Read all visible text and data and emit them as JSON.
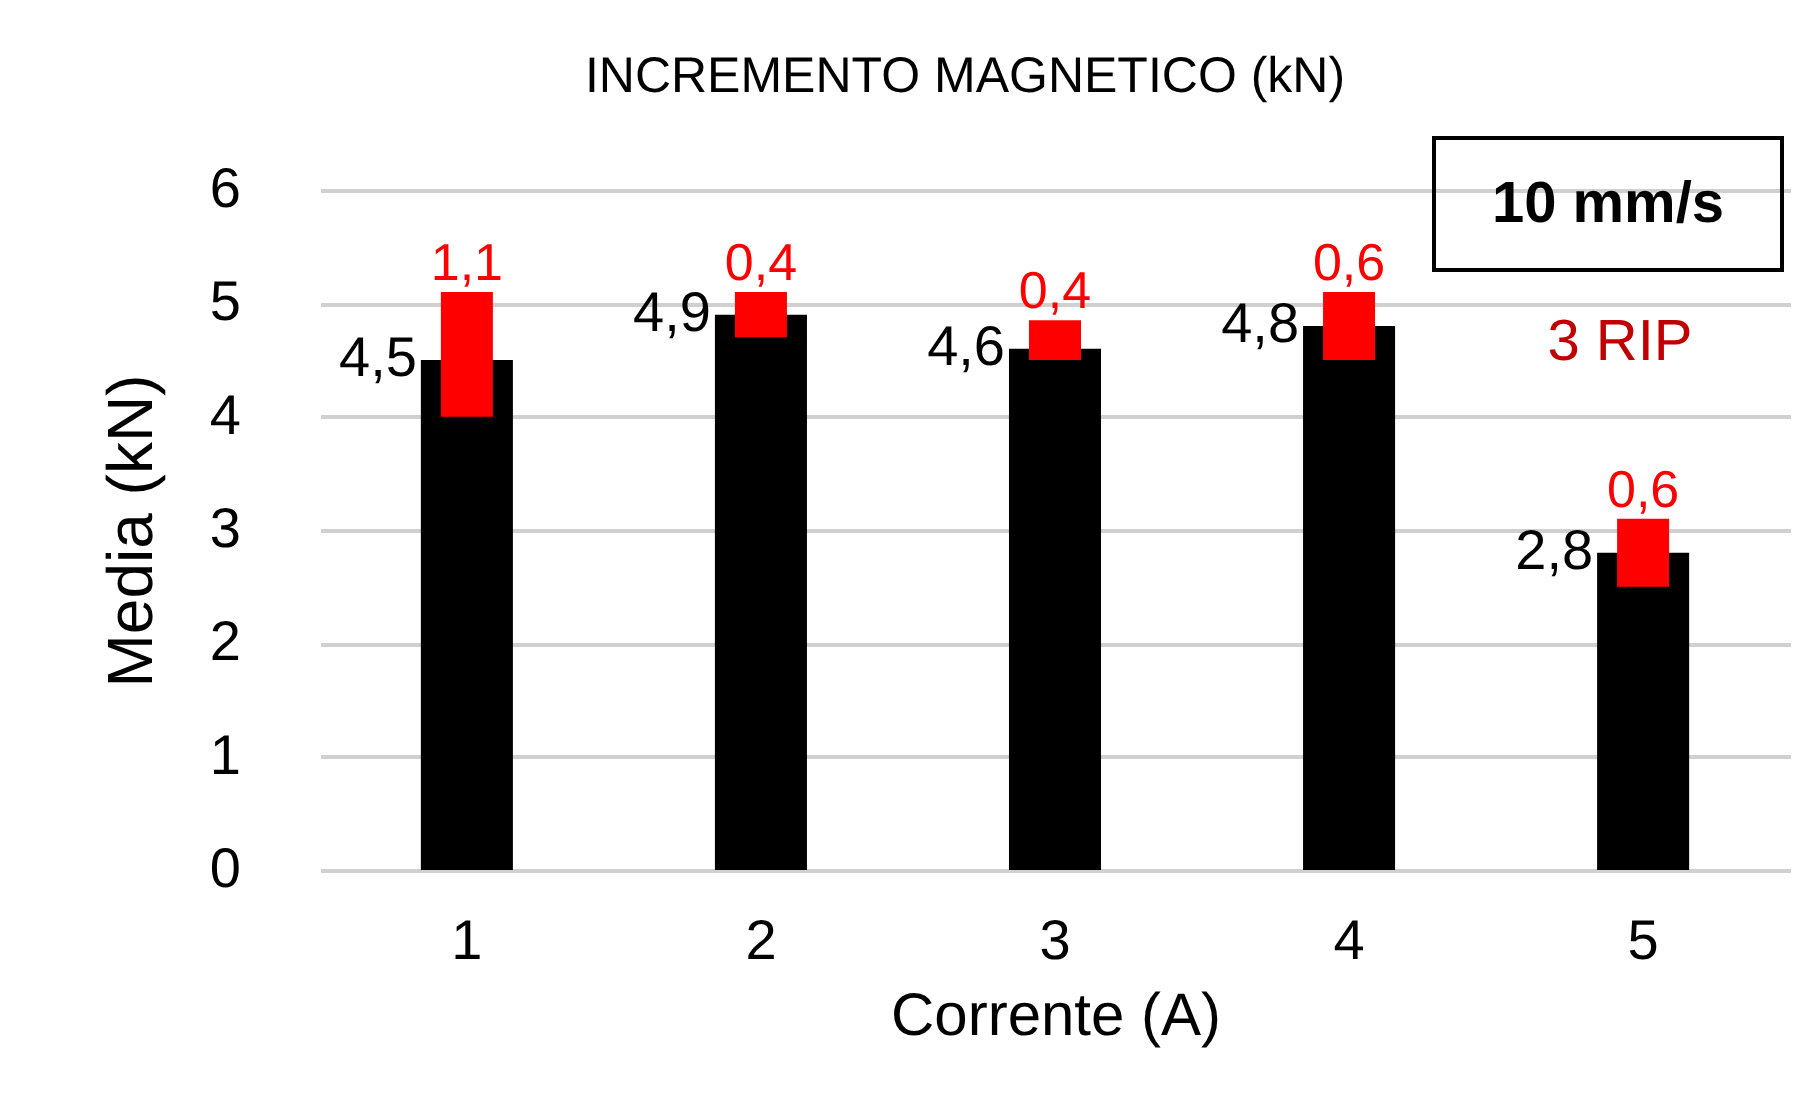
{
  "chart_data": {
    "type": "bar",
    "title": "INCREMENTO MAGNETICO (kN)",
    "xlabel": "Corrente (A)",
    "ylabel": "Media (kN)",
    "categories": [
      "1",
      "2",
      "3",
      "4",
      "5"
    ],
    "values": [
      4.5,
      4.9,
      4.6,
      4.8,
      2.8
    ],
    "value_labels": [
      "4,5",
      "4,9",
      "4,6",
      "4,8",
      "2,8"
    ],
    "color": "#000000",
    "errors": [
      [
        4.0,
        5.1
      ],
      [
        4.7,
        5.1
      ],
      [
        4.5,
        4.85
      ],
      [
        4.5,
        5.1
      ],
      [
        2.5,
        3.1
      ]
    ],
    "ylim": [
      0,
      6
    ],
    "yticks": [
      0,
      1,
      2,
      3,
      4,
      5,
      6
    ],
    "grid": "y",
    "annotations": [
      "10 mm/s",
      "3 RIP",
      {
        "text": "1,1",
        "x": "1",
        "y": 5.1
      },
      {
        "text": "0,4",
        "x": "2",
        "y": 5.1
      },
      {
        "text": "0,4",
        "x": "3",
        "y": 4.85
      },
      {
        "text": "0,6",
        "x": "4",
        "y": 5.1
      },
      {
        "text": "0,6",
        "x": "5",
        "y": 3.1
      }
    ]
  }
}
